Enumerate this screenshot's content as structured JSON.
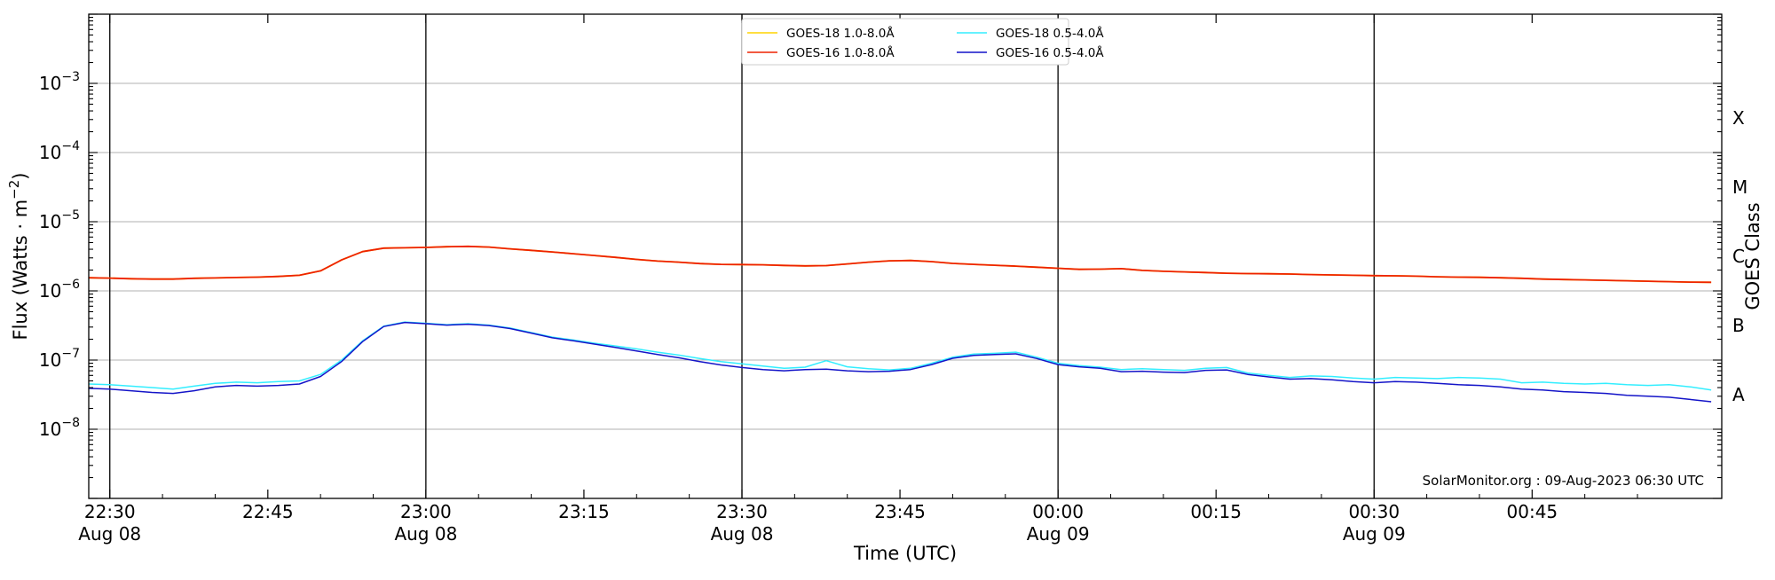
{
  "chart_data": {
    "type": "line",
    "xlabel": "Time (UTC)",
    "ylabel_main": "Flux (Watts · m",
    "ylabel_sup": "−2",
    "ylabel_close": ")",
    "right_label": "GOES Class",
    "yscale": "log",
    "ylim": [
      1e-09,
      0.01
    ],
    "xlim_minutes": [
      -2,
      153
    ],
    "y_ticks": [
      {
        "value": 1e-08,
        "mant": "10",
        "exp": "−8"
      },
      {
        "value": 1e-07,
        "mant": "10",
        "exp": "−7"
      },
      {
        "value": 1e-06,
        "mant": "10",
        "exp": "−6"
      },
      {
        "value": 1e-05,
        "mant": "10",
        "exp": "−5"
      },
      {
        "value": 0.0001,
        "mant": "10",
        "exp": "−4"
      },
      {
        "value": 0.001,
        "mant": "10",
        "exp": "−3"
      }
    ],
    "x_ticks": [
      {
        "minute": 0,
        "time": "22:30",
        "date": "Aug 08"
      },
      {
        "minute": 15,
        "time": "22:45",
        "date": ""
      },
      {
        "minute": 30,
        "time": "23:00",
        "date": "Aug 08"
      },
      {
        "minute": 45,
        "time": "23:15",
        "date": ""
      },
      {
        "minute": 60,
        "time": "23:30",
        "date": "Aug 08"
      },
      {
        "minute": 75,
        "time": "23:45",
        "date": ""
      },
      {
        "minute": 90,
        "time": "00:00",
        "date": "Aug 09"
      },
      {
        "minute": 105,
        "time": "00:15",
        "date": ""
      },
      {
        "minute": 120,
        "time": "00:30",
        "date": "Aug 09"
      },
      {
        "minute": 135,
        "time": "00:45",
        "date": ""
      }
    ],
    "vlines_minutes": [
      0,
      30,
      60,
      90,
      120
    ],
    "goes_classes": [
      {
        "label": "A",
        "value": 3.16e-08
      },
      {
        "label": "B",
        "value": 3.16e-07
      },
      {
        "label": "C",
        "value": 3.16e-06
      },
      {
        "label": "M",
        "value": 3.16e-05
      },
      {
        "label": "X",
        "value": 0.000316
      }
    ],
    "grid": "horizontal",
    "legend_position": "top-center",
    "x": [
      -2,
      0,
      2,
      4,
      6,
      8,
      10,
      12,
      14,
      16,
      18,
      20,
      22,
      24,
      26,
      28,
      30,
      32,
      34,
      36,
      38,
      40,
      42,
      44,
      46,
      48,
      50,
      52,
      54,
      56,
      58,
      60,
      62,
      64,
      66,
      68,
      70,
      72,
      74,
      76,
      78,
      80,
      82,
      84,
      86,
      88,
      90,
      92,
      94,
      96,
      98,
      100,
      102,
      104,
      106,
      108,
      110,
      112,
      114,
      116,
      118,
      120,
      122,
      124,
      126,
      128,
      130,
      132,
      134,
      136,
      138,
      140,
      142,
      144,
      146,
      148,
      150,
      152
    ],
    "series": [
      {
        "name": "GOES-18 1.0-8.0Å",
        "color": "#ffd400",
        "width": 1.8,
        "values": [
          1.55e-06,
          1.53e-06,
          1.5e-06,
          1.48e-06,
          1.48e-06,
          1.52e-06,
          1.54e-06,
          1.56e-06,
          1.58e-06,
          1.62e-06,
          1.68e-06,
          1.95e-06,
          2.8e-06,
          3.7e-06,
          4.15e-06,
          4.2e-06,
          4.25e-06,
          4.35e-06,
          4.4e-06,
          4.3e-06,
          4.05e-06,
          3.85e-06,
          3.65e-06,
          3.45e-06,
          3.25e-06,
          3.05e-06,
          2.85e-06,
          2.7e-06,
          2.6e-06,
          2.48e-06,
          2.42e-06,
          2.4e-06,
          2.38e-06,
          2.33e-06,
          2.3e-06,
          2.32e-06,
          2.45e-06,
          2.6e-06,
          2.72e-06,
          2.75e-06,
          2.65e-06,
          2.5e-06,
          2.42e-06,
          2.35e-06,
          2.28e-06,
          2.2e-06,
          2.12e-06,
          2.05e-06,
          2.06e-06,
          2.1e-06,
          1.98e-06,
          1.92e-06,
          1.88e-06,
          1.84e-06,
          1.8e-06,
          1.78e-06,
          1.77e-06,
          1.75e-06,
          1.72e-06,
          1.7e-06,
          1.68e-06,
          1.66e-06,
          1.65e-06,
          1.63e-06,
          1.6e-06,
          1.58e-06,
          1.57e-06,
          1.55e-06,
          1.52e-06,
          1.48e-06,
          1.46e-06,
          1.44e-06,
          1.42e-06,
          1.4e-06,
          1.38e-06,
          1.36e-06,
          1.34e-06,
          1.33e-06
        ]
      },
      {
        "name": "GOES-16 1.0-8.0Å",
        "color": "#ee2200",
        "width": 1.8,
        "values": [
          1.55e-06,
          1.53e-06,
          1.5e-06,
          1.48e-06,
          1.48e-06,
          1.52e-06,
          1.54e-06,
          1.56e-06,
          1.58e-06,
          1.62e-06,
          1.68e-06,
          1.95e-06,
          2.8e-06,
          3.7e-06,
          4.15e-06,
          4.2e-06,
          4.25e-06,
          4.35e-06,
          4.4e-06,
          4.3e-06,
          4.05e-06,
          3.85e-06,
          3.65e-06,
          3.45e-06,
          3.25e-06,
          3.05e-06,
          2.85e-06,
          2.7e-06,
          2.6e-06,
          2.48e-06,
          2.42e-06,
          2.4e-06,
          2.38e-06,
          2.33e-06,
          2.3e-06,
          2.32e-06,
          2.45e-06,
          2.6e-06,
          2.72e-06,
          2.75e-06,
          2.65e-06,
          2.5e-06,
          2.42e-06,
          2.35e-06,
          2.28e-06,
          2.2e-06,
          2.12e-06,
          2.05e-06,
          2.06e-06,
          2.1e-06,
          1.98e-06,
          1.92e-06,
          1.88e-06,
          1.84e-06,
          1.8e-06,
          1.78e-06,
          1.77e-06,
          1.75e-06,
          1.72e-06,
          1.7e-06,
          1.68e-06,
          1.66e-06,
          1.65e-06,
          1.63e-06,
          1.6e-06,
          1.58e-06,
          1.57e-06,
          1.55e-06,
          1.52e-06,
          1.48e-06,
          1.46e-06,
          1.44e-06,
          1.42e-06,
          1.4e-06,
          1.38e-06,
          1.36e-06,
          1.34e-06,
          1.33e-06
        ]
      },
      {
        "name": "GOES-18 0.5-4.0Å",
        "color": "#33eeff",
        "width": 1.5,
        "values": [
          4.5e-08,
          4.4e-08,
          4.2e-08,
          4e-08,
          3.8e-08,
          4.2e-08,
          4.6e-08,
          4.8e-08,
          4.7e-08,
          4.9e-08,
          5e-08,
          6.2e-08,
          1e-07,
          1.9e-07,
          3.1e-07,
          3.55e-07,
          3.4e-07,
          3.25e-07,
          3.35e-07,
          3.2e-07,
          2.9e-07,
          2.5e-07,
          2.15e-07,
          1.95e-07,
          1.75e-07,
          1.6e-07,
          1.45e-07,
          1.3e-07,
          1.18e-07,
          1.05e-07,
          9.5e-08,
          8.8e-08,
          8.2e-08,
          7.6e-08,
          7.9e-08,
          9.8e-08,
          8e-08,
          7.5e-08,
          7.2e-08,
          7.6e-08,
          9e-08,
          1.1e-07,
          1.22e-07,
          1.25e-07,
          1.3e-07,
          1.1e-07,
          9e-08,
          8.3e-08,
          7.9e-08,
          7.3e-08,
          7.5e-08,
          7.3e-08,
          7.1e-08,
          7.6e-08,
          7.8e-08,
          6.5e-08,
          6e-08,
          5.6e-08,
          5.9e-08,
          5.8e-08,
          5.5e-08,
          5.3e-08,
          5.6e-08,
          5.5e-08,
          5.4e-08,
          5.6e-08,
          5.5e-08,
          5.3e-08,
          4.7e-08,
          4.8e-08,
          4.6e-08,
          4.5e-08,
          4.6e-08,
          4.4e-08,
          4.3e-08,
          4.4e-08,
          4.1e-08,
          3.7e-08
        ]
      },
      {
        "name": "GOES-16 0.5-4.0Å",
        "color": "#1414c8",
        "width": 1.5,
        "values": [
          3.9e-08,
          3.8e-08,
          3.6e-08,
          3.4e-08,
          3.3e-08,
          3.6e-08,
          4.1e-08,
          4.3e-08,
          4.2e-08,
          4.3e-08,
          4.5e-08,
          5.8e-08,
          9.5e-08,
          1.85e-07,
          3.05e-07,
          3.5e-07,
          3.35e-07,
          3.2e-07,
          3.3e-07,
          3.15e-07,
          2.85e-07,
          2.45e-07,
          2.1e-07,
          1.9e-07,
          1.7e-07,
          1.52e-07,
          1.35e-07,
          1.2e-07,
          1.08e-07,
          9.5e-08,
          8.5e-08,
          7.8e-08,
          7.3e-08,
          7e-08,
          7.3e-08,
          7.4e-08,
          7e-08,
          6.8e-08,
          6.9e-08,
          7.3e-08,
          8.6e-08,
          1.06e-07,
          1.17e-07,
          1.2e-07,
          1.23e-07,
          1.05e-07,
          8.6e-08,
          8e-08,
          7.6e-08,
          6.8e-08,
          6.9e-08,
          6.7e-08,
          6.6e-08,
          7.1e-08,
          7.2e-08,
          6.2e-08,
          5.7e-08,
          5.3e-08,
          5.4e-08,
          5.2e-08,
          4.9e-08,
          4.7e-08,
          4.9e-08,
          4.8e-08,
          4.6e-08,
          4.4e-08,
          4.3e-08,
          4.1e-08,
          3.8e-08,
          3.7e-08,
          3.5e-08,
          3.4e-08,
          3.3e-08,
          3.1e-08,
          3e-08,
          2.9e-08,
          2.7e-08,
          2.5e-08
        ]
      }
    ],
    "credit": "SolarMonitor.org : 09-Aug-2023 06:30 UTC"
  }
}
